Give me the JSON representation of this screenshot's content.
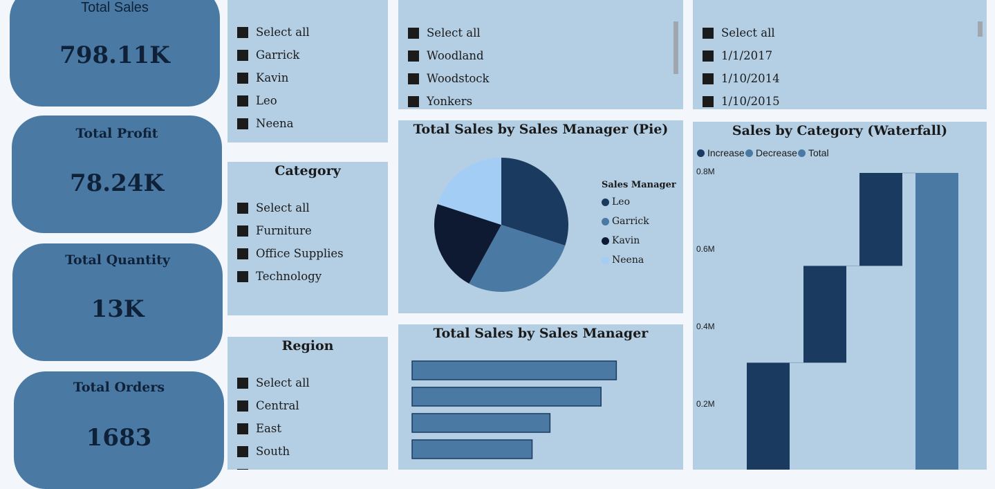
{
  "kpis": [
    {
      "title": "Total Sales",
      "value": "798.11K"
    },
    {
      "title": "Total Profit",
      "value": "78.24K"
    },
    {
      "title": "Total Quantity",
      "value": "13K"
    },
    {
      "title": "Total Orders",
      "value": "1683"
    }
  ],
  "slicers": {
    "sales_manager": {
      "title": "",
      "items": [
        "Select all",
        "Garrick",
        "Kavin",
        "Leo",
        "Neena"
      ]
    },
    "category": {
      "title": "Category",
      "items": [
        "Select all",
        "Furniture",
        "Office Supplies",
        "Technology"
      ]
    },
    "region": {
      "title": "Region",
      "items": [
        "Select all",
        "Central",
        "East",
        "South"
      ]
    },
    "city": {
      "title": "",
      "items": [
        "Select all",
        "Woodland",
        "Woodstock",
        "Yonkers"
      ]
    },
    "order_date": {
      "title": "",
      "items": [
        "Select all",
        "1/1/2017",
        "1/10/2014",
        "1/10/2015"
      ]
    }
  },
  "pie": {
    "title": "Total Sales by Sales Manager (Pie)",
    "legend_title": "Sales Manager",
    "slices": [
      {
        "name": "Leo",
        "share": 0.3,
        "color": "#1b3a5f"
      },
      {
        "name": "Garrick",
        "share": 0.28,
        "color": "#4a7aa3"
      },
      {
        "name": "Kavin",
        "share": 0.22,
        "color": "#0d1a31"
      },
      {
        "name": "Neena",
        "share": 0.2,
        "color": "#a4cdf6"
      }
    ]
  },
  "bar": {
    "title": "Total Sales by Sales Manager",
    "values": [
      240,
      222,
      162,
      141
    ],
    "max": 260,
    "color": "#4a7aa3"
  },
  "waterfall": {
    "title": "Sales by Category (Waterfall)",
    "legend": [
      {
        "label": "Increase",
        "color": "#1b3a5f"
      },
      {
        "label": "Decrease",
        "color": "#4a7aa3"
      },
      {
        "label": "Total",
        "color": "#4a7aa3"
      }
    ],
    "y_ticks": [
      "0.8M",
      "0.6M",
      "0.4M",
      "0.2M"
    ],
    "chart_data": {
      "type": "bar",
      "series": [
        {
          "kind": "increase",
          "start": 0,
          "end": 0.31
        },
        {
          "kind": "increase",
          "start": 0.31,
          "end": 0.56
        },
        {
          "kind": "increase",
          "start": 0.56,
          "end": 0.8
        },
        {
          "kind": "total",
          "start": 0,
          "end": 0.8
        }
      ],
      "ylim": [
        0,
        0.86
      ]
    }
  }
}
